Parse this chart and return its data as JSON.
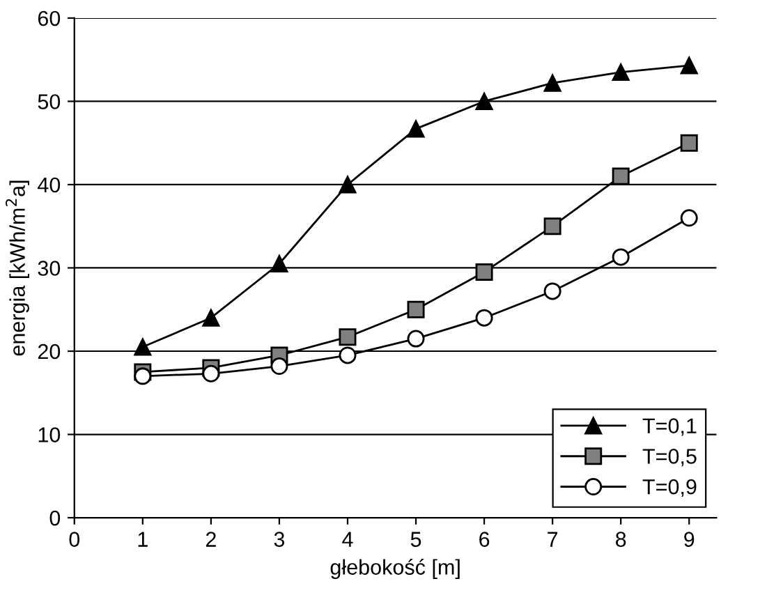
{
  "chart_data": {
    "type": "line",
    "xlabel": "głebokość [m]",
    "ylabel": "energia [kWh/m$^{2}$a]",
    "x": [
      1,
      2,
      3,
      4,
      5,
      6,
      7,
      8,
      9
    ],
    "series": [
      {
        "name": "T=0,1",
        "color": "#000000",
        "marker": "triangle",
        "values": [
          20.5,
          24,
          30.5,
          40,
          46.7,
          50,
          52.2,
          53.5,
          54.3
        ]
      },
      {
        "name": "T=0,5",
        "color": "#808080",
        "marker": "square",
        "values": [
          17.5,
          18,
          19.5,
          21.7,
          25,
          29.5,
          35,
          41,
          45
        ]
      },
      {
        "name": "T=0,9",
        "color": "#ffffff",
        "marker": "circle",
        "values": [
          17,
          17.3,
          18.2,
          19.5,
          21.5,
          24,
          27.2,
          31.3,
          36
        ]
      }
    ],
    "xlim": [
      0,
      9.4
    ],
    "xticks": [
      0,
      1,
      2,
      3,
      4,
      5,
      6,
      7,
      8,
      9
    ],
    "ylim": [
      0,
      60
    ],
    "yticks": [
      0,
      10,
      20,
      30,
      40,
      50,
      60
    ],
    "grid": "y",
    "legend": "bottom right",
    "line_style": "solid"
  }
}
